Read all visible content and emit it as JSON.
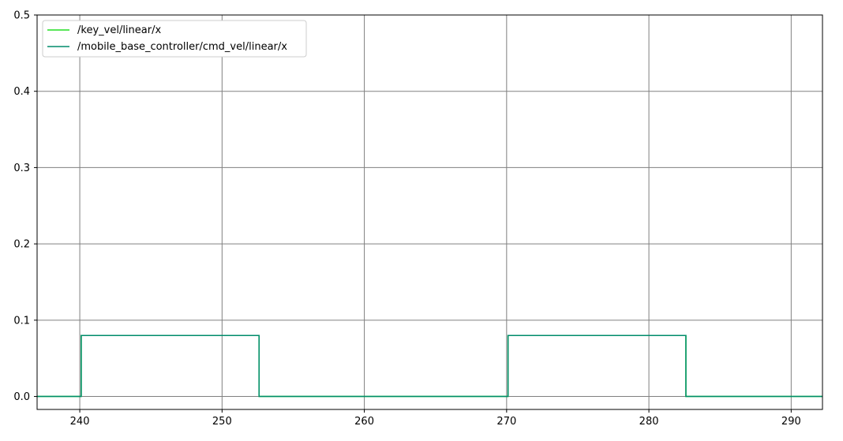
{
  "chart_data": {
    "type": "line",
    "title": "",
    "xlabel": "",
    "ylabel": "",
    "xlim": [
      237.0,
      292.2
    ],
    "ylim": [
      -0.017,
      0.5
    ],
    "xticks": [
      240,
      250,
      260,
      270,
      280,
      290
    ],
    "xtick_labels": [
      "240",
      "250",
      "260",
      "270",
      "280",
      "290"
    ],
    "yticks": [
      0.0,
      0.1,
      0.2,
      0.3,
      0.4,
      0.5
    ],
    "ytick_labels": [
      "0.0",
      "0.1",
      "0.2",
      "0.3",
      "0.4",
      "0.5"
    ],
    "grid": true,
    "legend_position": "top-left",
    "series": [
      {
        "name": "/key_vel/linear/x",
        "color": "#22dd22",
        "x": [
          237.0,
          240.1,
          240.1,
          252.6,
          252.6,
          270.1,
          270.1,
          282.6,
          282.6,
          292.2
        ],
        "y": [
          0.0,
          0.0,
          0.08,
          0.08,
          0.0,
          0.0,
          0.08,
          0.08,
          0.0,
          0.0
        ]
      },
      {
        "name": "/mobile_base_controller/cmd_vel/linear/x",
        "color": "#008b6b",
        "x": [
          237.0,
          240.1,
          240.1,
          252.6,
          252.6,
          270.1,
          270.1,
          282.6,
          282.6,
          292.2
        ],
        "y": [
          0.0,
          0.0,
          0.08,
          0.08,
          0.0,
          0.0,
          0.08,
          0.08,
          0.0,
          0.0
        ]
      }
    ]
  }
}
